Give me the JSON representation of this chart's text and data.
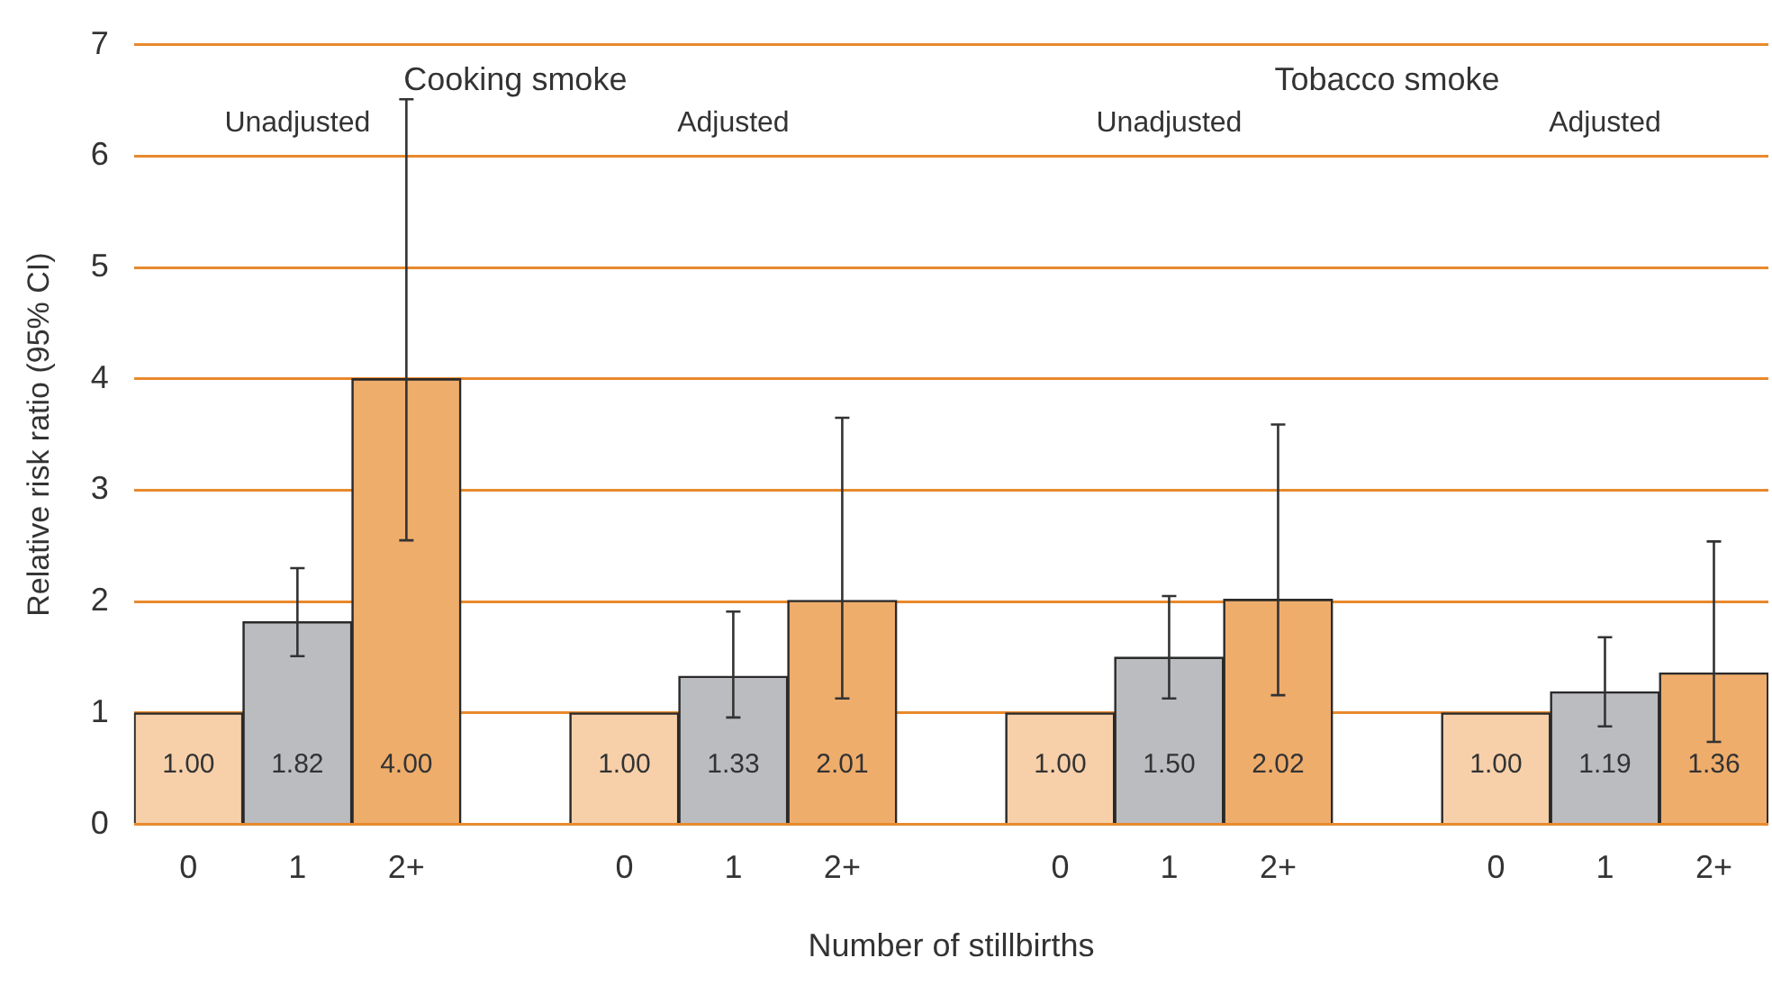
{
  "chart_data": {
    "type": "bar",
    "categories": [
      "0",
      "1",
      "2+",
      null,
      "0",
      "1",
      "2+",
      null,
      "0",
      "1",
      "2+",
      null,
      "0",
      "1",
      "2+"
    ],
    "values": [
      1.0,
      1.82,
      4.0,
      null,
      1.0,
      1.33,
      2.01,
      null,
      1.0,
      1.5,
      2.02,
      null,
      1.0,
      1.19,
      1.36
    ],
    "colors": [
      "#f7d0aa",
      "#bbbcc0",
      "#efad6c",
      null,
      "#f7d0aa",
      "#bbbcc0",
      "#efad6c",
      null,
      "#f7d0aa",
      "#bbbcc0",
      "#efad6c",
      null,
      "#f7d0aa",
      "#bbbcc0",
      "#efad6c"
    ],
    "errors": [
      null,
      [
        1.51,
        2.3
      ],
      [
        2.55,
        6.51
      ],
      null,
      null,
      [
        0.96,
        1.91
      ],
      [
        1.13,
        3.65
      ],
      null,
      null,
      [
        1.13,
        2.05
      ],
      [
        1.16,
        3.59
      ],
      null,
      null,
      [
        0.88,
        1.68
      ],
      [
        0.74,
        2.54
      ]
    ],
    "value_labels": [
      "1.00",
      "1.82",
      "4.00",
      null,
      "1.00",
      "1.33",
      "2.01",
      null,
      "1.00",
      "1.50",
      "2.02",
      null,
      "1.00",
      "1.19",
      "1.36"
    ],
    "xlabel": "Number of stillbirths",
    "ylabel": "Relative risk ratio (95% CI)",
    "ylim": [
      0,
      7
    ],
    "yticks": [
      0,
      1,
      2,
      3,
      4,
      5,
      6,
      7
    ],
    "grid": "y",
    "legend": false,
    "annotations": [
      "Cooking smoke",
      "Tobacco smoke",
      "Unadjusted",
      "Adjusted",
      "Unadjusted",
      "Adjusted"
    ]
  }
}
